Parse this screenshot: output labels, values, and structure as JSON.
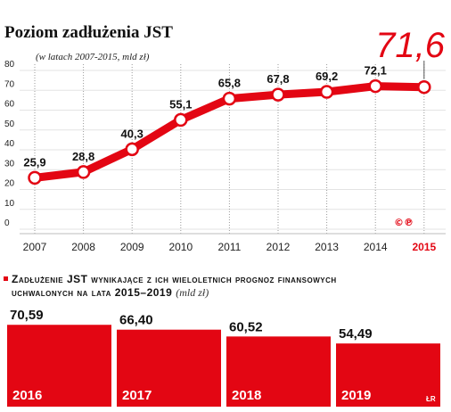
{
  "chart_data": [
    {
      "type": "line",
      "title": "Poziom zadłużenia JST",
      "subtitle": "(w latach 2007-2015, mld zł)",
      "x": [
        "2007",
        "2008",
        "2009",
        "2010",
        "2011",
        "2012",
        "2013",
        "2014",
        "2015"
      ],
      "series": [
        {
          "values": [
            25.9,
            28.8,
            40.3,
            55.1,
            65.8,
            67.8,
            69.2,
            72.1,
            71.6
          ],
          "data_labels": [
            "25,9",
            "28,8",
            "40,3",
            "55,1",
            "65,8",
            "67,8",
            "69,2",
            "72,1",
            "71,6"
          ]
        }
      ],
      "highlight": "2015",
      "ylim": [
        0,
        80
      ],
      "yticks": [
        0,
        10,
        20,
        30,
        40,
        50,
        60,
        70,
        80
      ],
      "grid": true,
      "color": "#e30613"
    },
    {
      "type": "bar",
      "title_lines": [
        "Zadłużenie JST wynikające z ich wieloletnich prognoz finansowych",
        "uchwalonych na lata 2015–2019"
      ],
      "unit": "(mld zł)",
      "categories": [
        "2016",
        "2017",
        "2018",
        "2019"
      ],
      "values": [
        70.59,
        66.4,
        60.52,
        54.49
      ],
      "data_labels": [
        "70,59",
        "66,40",
        "60,52",
        "54,49"
      ],
      "color": "#e30613"
    }
  ],
  "marks": {
    "copyright": "©℗",
    "author": "ŁR"
  }
}
